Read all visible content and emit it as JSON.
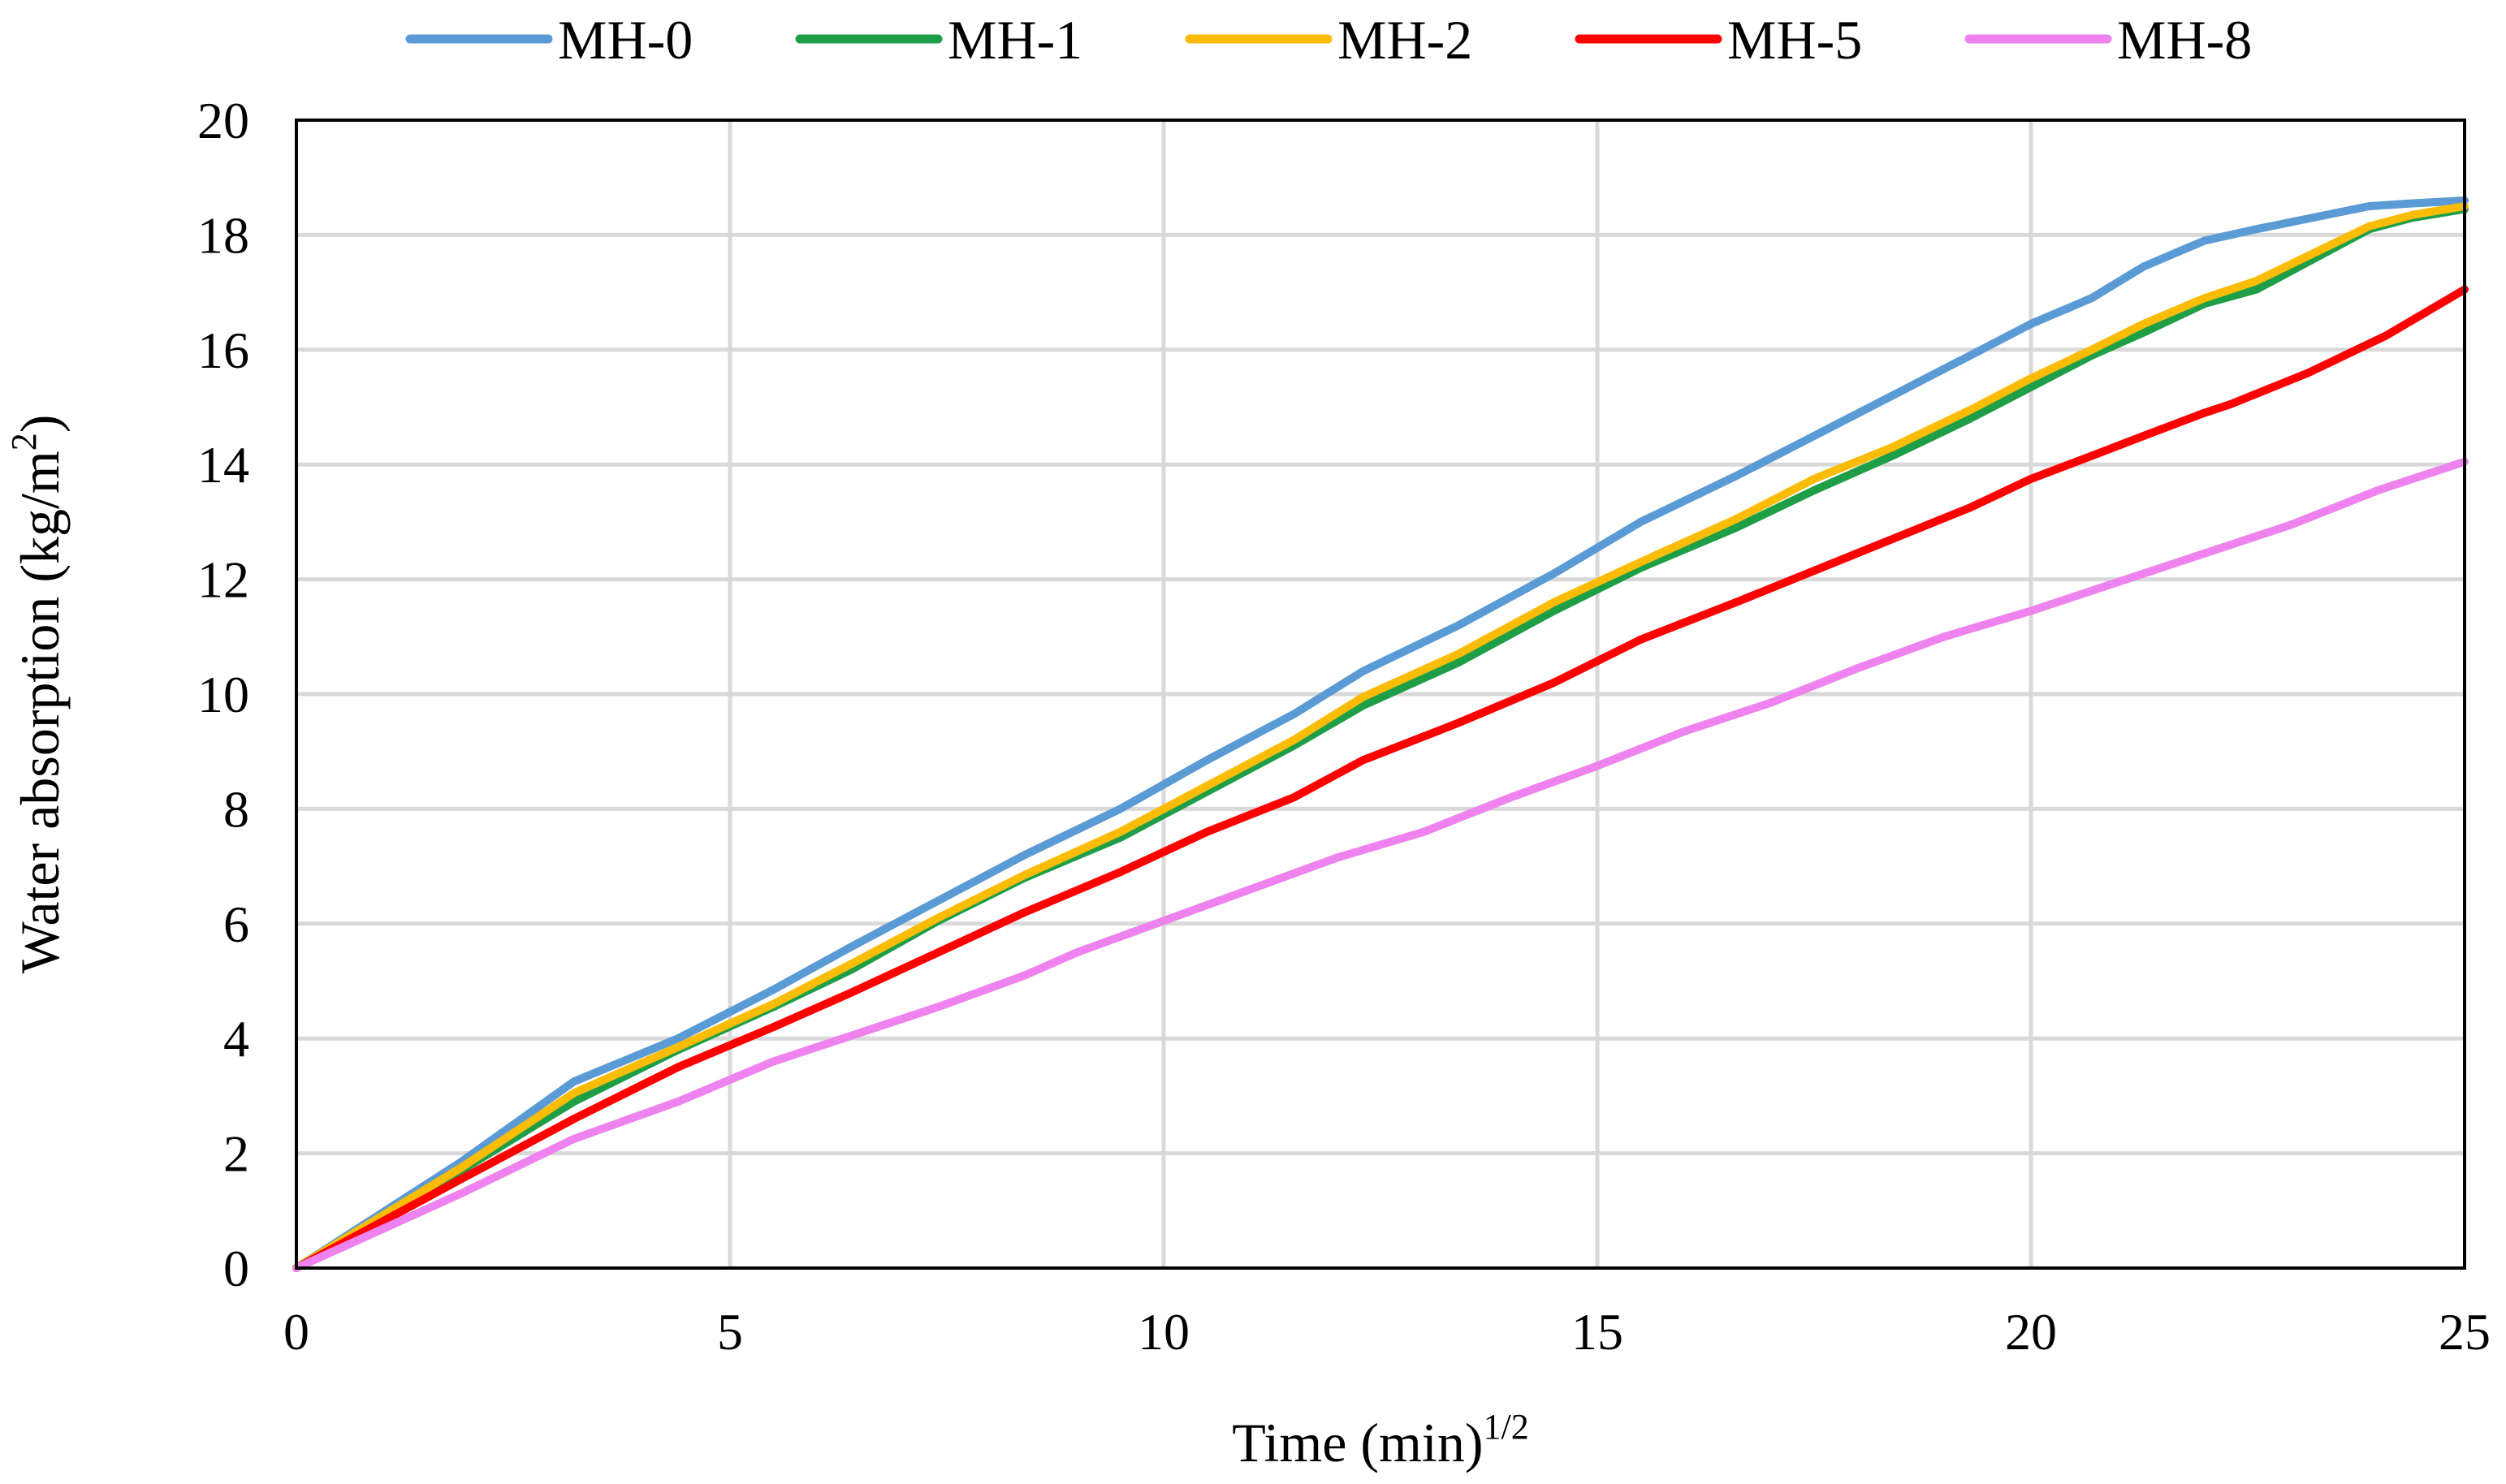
{
  "chart_data": {
    "type": "line",
    "title": "",
    "xlabel": "Time (min)",
    "xlabel_sup": "1/2",
    "ylabel": "Water absorption (kg/m",
    "ylabel_sup": "2",
    "ylabel_end": ")",
    "xlim": [
      0,
      25
    ],
    "ylim": [
      0,
      20
    ],
    "xticks": [
      "0",
      "5",
      "10",
      "15",
      "20",
      "25"
    ],
    "yticks": [
      "0",
      "2",
      "4",
      "6",
      "8",
      "10",
      "12",
      "14",
      "16",
      "18",
      "20"
    ],
    "grid": true,
    "legend_position": "top",
    "series": [
      {
        "name": "MH-0",
        "color": "#5b9bd5",
        "points": [
          [
            0,
            0
          ],
          [
            1.9,
            1.85
          ],
          [
            3.2,
            3.25
          ],
          [
            4.4,
            4.0
          ],
          [
            5.5,
            4.85
          ],
          [
            6.4,
            5.6
          ],
          [
            7.4,
            6.4
          ],
          [
            8.4,
            7.2
          ],
          [
            9.5,
            8.0
          ],
          [
            10.5,
            8.85
          ],
          [
            11.5,
            9.65
          ],
          [
            12.3,
            10.4
          ],
          [
            13.4,
            11.2
          ],
          [
            14.5,
            12.1
          ],
          [
            15.5,
            13.0
          ],
          [
            16.6,
            13.8
          ],
          [
            17.5,
            14.5
          ],
          [
            18.4,
            15.2
          ],
          [
            19.3,
            15.9
          ],
          [
            20.0,
            16.45
          ],
          [
            20.7,
            16.9
          ],
          [
            21.3,
            17.45
          ],
          [
            22.0,
            17.9
          ],
          [
            22.6,
            18.1
          ],
          [
            23.9,
            18.5
          ],
          [
            24.4,
            18.55
          ],
          [
            25,
            18.6
          ]
        ]
      },
      {
        "name": "MH-1",
        "color": "#1e9e47",
        "points": [
          [
            0,
            0
          ],
          [
            1.9,
            1.7
          ],
          [
            3.2,
            2.9
          ],
          [
            4.4,
            3.8
          ],
          [
            5.5,
            4.55
          ],
          [
            6.4,
            5.2
          ],
          [
            7.4,
            6.05
          ],
          [
            8.4,
            6.8
          ],
          [
            9.5,
            7.5
          ],
          [
            10.5,
            8.3
          ],
          [
            11.5,
            9.1
          ],
          [
            12.3,
            9.8
          ],
          [
            13.4,
            10.55
          ],
          [
            14.5,
            11.45
          ],
          [
            15.5,
            12.2
          ],
          [
            16.6,
            12.9
          ],
          [
            17.5,
            13.55
          ],
          [
            18.4,
            14.15
          ],
          [
            19.3,
            14.8
          ],
          [
            20.0,
            15.35
          ],
          [
            20.7,
            15.9
          ],
          [
            21.3,
            16.3
          ],
          [
            22.0,
            16.8
          ],
          [
            22.6,
            17.05
          ],
          [
            23.9,
            18.1
          ],
          [
            24.4,
            18.3
          ],
          [
            25,
            18.45
          ]
        ]
      },
      {
        "name": "MH-2",
        "color": "#fbbc05",
        "points": [
          [
            0,
            0
          ],
          [
            1.9,
            1.75
          ],
          [
            3.2,
            3.05
          ],
          [
            4.4,
            3.85
          ],
          [
            5.5,
            4.6
          ],
          [
            6.4,
            5.3
          ],
          [
            7.4,
            6.1
          ],
          [
            8.4,
            6.85
          ],
          [
            9.5,
            7.6
          ],
          [
            10.5,
            8.4
          ],
          [
            11.5,
            9.2
          ],
          [
            12.3,
            9.95
          ],
          [
            13.4,
            10.7
          ],
          [
            14.5,
            11.6
          ],
          [
            15.5,
            12.3
          ],
          [
            16.6,
            13.05
          ],
          [
            17.5,
            13.75
          ],
          [
            18.4,
            14.3
          ],
          [
            19.3,
            14.95
          ],
          [
            20.0,
            15.5
          ],
          [
            20.7,
            16.0
          ],
          [
            21.3,
            16.45
          ],
          [
            22.0,
            16.9
          ],
          [
            22.6,
            17.2
          ],
          [
            23.9,
            18.15
          ],
          [
            24.4,
            18.35
          ],
          [
            25,
            18.5
          ]
        ]
      },
      {
        "name": "MH-5",
        "color": "#ff0000",
        "points": [
          [
            0,
            0
          ],
          [
            1.9,
            1.55
          ],
          [
            3.2,
            2.6
          ],
          [
            4.4,
            3.5
          ],
          [
            5.5,
            4.2
          ],
          [
            6.4,
            4.8
          ],
          [
            7.4,
            5.5
          ],
          [
            8.4,
            6.2
          ],
          [
            9.5,
            6.9
          ],
          [
            10.5,
            7.6
          ],
          [
            11.5,
            8.2
          ],
          [
            12.3,
            8.85
          ],
          [
            13.4,
            9.5
          ],
          [
            14.5,
            10.2
          ],
          [
            15.5,
            10.95
          ],
          [
            16.6,
            11.6
          ],
          [
            17.5,
            12.15
          ],
          [
            18.4,
            12.7
          ],
          [
            19.3,
            13.25
          ],
          [
            20.0,
            13.75
          ],
          [
            20.7,
            14.15
          ],
          [
            21.3,
            14.5
          ],
          [
            22.0,
            14.9
          ],
          [
            22.3,
            15.05
          ],
          [
            23.2,
            15.6
          ],
          [
            24.1,
            16.25
          ],
          [
            25,
            17.05
          ]
        ]
      },
      {
        "name": "MH-8",
        "color": "#ee82ee",
        "points": [
          [
            0,
            0
          ],
          [
            1.9,
            1.3
          ],
          [
            3.2,
            2.25
          ],
          [
            4.4,
            2.9
          ],
          [
            5.5,
            3.6
          ],
          [
            6.4,
            4.05
          ],
          [
            7.4,
            4.55
          ],
          [
            8.4,
            5.1
          ],
          [
            9.0,
            5.5
          ],
          [
            10.0,
            6.05
          ],
          [
            11.0,
            6.6
          ],
          [
            12.0,
            7.15
          ],
          [
            13.0,
            7.6
          ],
          [
            14.0,
            8.2
          ],
          [
            15.0,
            8.75
          ],
          [
            16.0,
            9.35
          ],
          [
            17.0,
            9.85
          ],
          [
            18.0,
            10.45
          ],
          [
            19.0,
            11.0
          ],
          [
            20.0,
            11.45
          ],
          [
            21.0,
            11.95
          ],
          [
            22.0,
            12.45
          ],
          [
            23.0,
            12.95
          ],
          [
            24.0,
            13.55
          ],
          [
            25,
            14.05
          ]
        ]
      }
    ]
  }
}
